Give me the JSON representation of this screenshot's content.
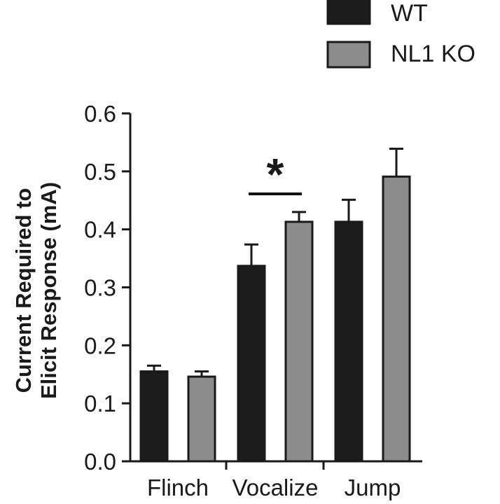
{
  "chart_data": {
    "type": "bar",
    "title": "",
    "xlabel": "",
    "ylabel_lines": [
      "Current Required to",
      "Elicit Response (mA)"
    ],
    "categories": [
      "Flinch",
      "Vocalize",
      "Jump"
    ],
    "yticks": [
      "0.0",
      "0.1",
      "0.2",
      "0.3",
      "0.4",
      "0.5",
      "0.6"
    ],
    "ylim": [
      0,
      0.6
    ],
    "legend_position": "top-right",
    "grid": false,
    "series": [
      {
        "name": "WT",
        "color": "#1c1c1c",
        "values": [
          0.155,
          0.337,
          0.413
        ],
        "errors": [
          0.01,
          0.037,
          0.038
        ]
      },
      {
        "name": "NL1 KO",
        "color": "#8c8c8c",
        "values": [
          0.146,
          0.413,
          0.491
        ],
        "errors": [
          0.009,
          0.017,
          0.048
        ]
      }
    ],
    "significance": [
      {
        "category": "Vocalize",
        "label": "*"
      }
    ]
  }
}
